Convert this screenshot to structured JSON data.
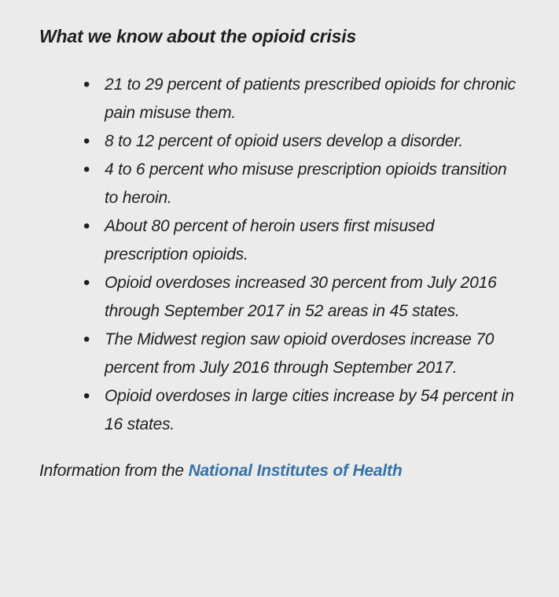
{
  "panel": {
    "title": "What we know about the opioid crisis",
    "bullets": [
      "21 to 29 percent of patients prescribed opioids for chronic pain misuse them.",
      "8 to 12 percent of opioid users develop a disorder.",
      "4 to 6 percent who misuse prescription opioids transition to heroin.",
      "About 80 percent of heroin users first misused prescription opioids.",
      "Opioid overdoses increased 30 percent from July 2016 through September 2017 in 52 areas in 45 states.",
      "The Midwest region saw opioid overdoses increase 70 percent from July 2016 through September 2017.",
      "Opioid overdoses in large cities increase by 54 percent in 16 states."
    ],
    "footer": {
      "prefix": "Information from the ",
      "link_text": "National Institutes of Health"
    },
    "colors": {
      "background": "#ebebeb",
      "text": "#1f1f1f",
      "link": "#3572a8"
    }
  }
}
